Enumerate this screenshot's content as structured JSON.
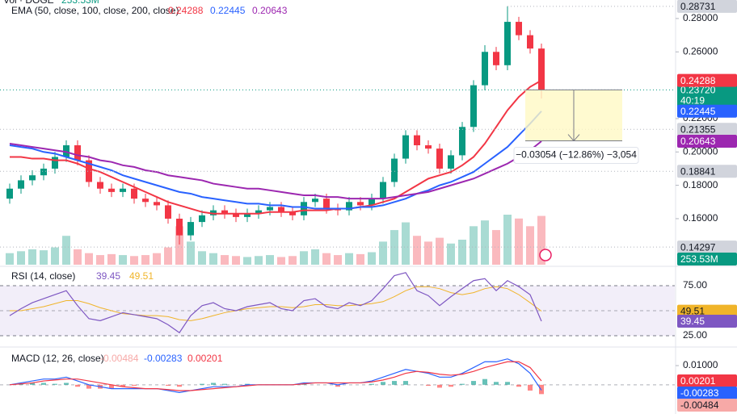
{
  "chart_data": {
    "type": "candlestick",
    "volume_legend": "Vol · DOGE",
    "ema_legend": "EMA (50, close, 100, close, 200, close)",
    "ylim": [
      0.1324,
      0.2911
    ],
    "yticks": [
      {
        "value": 0.28,
        "label": "0.28000"
      },
      {
        "value": 0.26,
        "label": "0.26000"
      },
      {
        "value": 0.22,
        "label": "0.22000"
      },
      {
        "value": 0.2,
        "label": "0.20000"
      },
      {
        "value": 0.18,
        "label": "0.18000"
      },
      {
        "value": 0.16,
        "label": "0.16000"
      }
    ],
    "up_color": "#089981",
    "down_color": "#f23645",
    "open": [
      0.172,
      0.178,
      0.183,
      0.186,
      0.19,
      0.197,
      0.204,
      0.195,
      0.182,
      0.178,
      0.176,
      0.178,
      0.172,
      0.17,
      0.168,
      0.16,
      0.15,
      0.158,
      0.162,
      0.165,
      0.163,
      0.161,
      0.163,
      0.165,
      0.167,
      0.164,
      0.162,
      0.17,
      0.172,
      0.166,
      0.165,
      0.17,
      0.168,
      0.172,
      0.182,
      0.196,
      0.21,
      0.204,
      0.202,
      0.19,
      0.198,
      0.215,
      0.24,
      0.26,
      0.252,
      0.278,
      0.27,
      0.262
    ],
    "high": [
      0.181,
      0.186,
      0.189,
      0.193,
      0.2,
      0.207,
      0.207,
      0.198,
      0.185,
      0.181,
      0.181,
      0.181,
      0.175,
      0.173,
      0.171,
      0.163,
      0.161,
      0.165,
      0.168,
      0.168,
      0.166,
      0.166,
      0.168,
      0.17,
      0.17,
      0.167,
      0.173,
      0.175,
      0.175,
      0.169,
      0.173,
      0.173,
      0.175,
      0.185,
      0.199,
      0.213,
      0.213,
      0.207,
      0.205,
      0.201,
      0.218,
      0.243,
      0.264,
      0.263,
      0.28731,
      0.281,
      0.273,
      0.265
    ],
    "low": [
      0.169,
      0.175,
      0.18,
      0.183,
      0.187,
      0.194,
      0.192,
      0.179,
      0.175,
      0.173,
      0.173,
      0.169,
      0.167,
      0.165,
      0.157,
      0.1445,
      0.147,
      0.155,
      0.159,
      0.16,
      0.158,
      0.158,
      0.16,
      0.162,
      0.161,
      0.159,
      0.159,
      0.167,
      0.163,
      0.162,
      0.162,
      0.165,
      0.165,
      0.169,
      0.179,
      0.193,
      0.201,
      0.199,
      0.187,
      0.187,
      0.195,
      0.212,
      0.237,
      0.249,
      0.249,
      0.267,
      0.259,
      0.232
    ],
    "close": [
      0.178,
      0.183,
      0.186,
      0.19,
      0.197,
      0.204,
      0.195,
      0.182,
      0.178,
      0.176,
      0.178,
      0.172,
      0.17,
      0.168,
      0.16,
      0.15,
      0.158,
      0.162,
      0.165,
      0.163,
      0.161,
      0.163,
      0.165,
      0.167,
      0.164,
      0.162,
      0.17,
      0.172,
      0.166,
      0.165,
      0.17,
      0.168,
      0.172,
      0.182,
      0.196,
      0.21,
      0.204,
      0.202,
      0.19,
      0.198,
      0.215,
      0.24,
      0.26,
      0.252,
      0.278,
      0.27,
      0.262,
      0.2372
    ],
    "ema": [
      {
        "color": "#f23645",
        "values": [
          0.197,
          0.197,
          0.196,
          0.196,
          0.195,
          0.195,
          0.193,
          0.19,
          0.188,
          0.185,
          0.182,
          0.179,
          0.176,
          0.173,
          0.17,
          0.168,
          0.166,
          0.164,
          0.163,
          0.163,
          0.163,
          0.163,
          0.163,
          0.164,
          0.164,
          0.164,
          0.165,
          0.165,
          0.165,
          0.166,
          0.166,
          0.167,
          0.168,
          0.17,
          0.172,
          0.176,
          0.18,
          0.184,
          0.186,
          0.188,
          0.192,
          0.197,
          0.205,
          0.215,
          0.225,
          0.233,
          0.239,
          0.24288
        ]
      },
      {
        "color": "#2962ff",
        "values": [
          0.204,
          0.203,
          0.202,
          0.2,
          0.199,
          0.197,
          0.195,
          0.193,
          0.191,
          0.189,
          0.186,
          0.184,
          0.182,
          0.18,
          0.178,
          0.176,
          0.175,
          0.173,
          0.172,
          0.171,
          0.17,
          0.169,
          0.169,
          0.168,
          0.168,
          0.167,
          0.167,
          0.166,
          0.166,
          0.166,
          0.166,
          0.167,
          0.167,
          0.168,
          0.17,
          0.172,
          0.175,
          0.177,
          0.18,
          0.182,
          0.185,
          0.188,
          0.193,
          0.198,
          0.203,
          0.21,
          0.217,
          0.22445
        ]
      },
      {
        "color": "#9c27b0",
        "values": [
          0.205,
          0.204,
          0.203,
          0.202,
          0.201,
          0.2,
          0.198,
          0.197,
          0.195,
          0.194,
          0.192,
          0.191,
          0.189,
          0.188,
          0.186,
          0.185,
          0.184,
          0.183,
          0.181,
          0.18,
          0.179,
          0.178,
          0.178,
          0.177,
          0.176,
          0.175,
          0.174,
          0.174,
          0.173,
          0.173,
          0.172,
          0.172,
          0.172,
          0.172,
          0.173,
          0.174,
          0.175,
          0.176,
          0.178,
          0.18,
          0.182,
          0.184,
          0.187,
          0.19,
          0.193,
          0.197,
          0.201,
          0.20643
        ]
      }
    ],
    "levels": [
      0.21355,
      0.18841,
      0.14297
    ],
    "last_price": {
      "value": 0.2372,
      "label": "0.23720"
    },
    "timer": "40:19",
    "volume": {
      "values": [
        60000000.0,
        70000000.0,
        80000000.0,
        75000000.0,
        90000000.0,
        150000000.0,
        80000000.0,
        60000000.0,
        50000000.0,
        55000000.0,
        50000000.0,
        45000000.0,
        50000000.0,
        60000000.0,
        90000000.0,
        200000000.0,
        120000000.0,
        70000000.0,
        60000000.0,
        50000000.0,
        45000000.0,
        40000000.0,
        45000000.0,
        50000000.0,
        40000000.0,
        45000000.0,
        70000000.0,
        80000000.0,
        60000000.0,
        50000000.0,
        60000000.0,
        55000000.0,
        65000000.0,
        120000000.0,
        180000000.0,
        220000000.0,
        150000000.0,
        120000000.0,
        140000000.0,
        110000000.0,
        130000000.0,
        200000000.0,
        230000000.0,
        180000000.0,
        260000000.0,
        240000000.0,
        200000000.0,
        253530000.0
      ],
      "last_label": "253.53M"
    },
    "measure": {
      "change": -0.03054,
      "label": "−0.03054 (−12.86%) −3,054"
    },
    "rsi": {
      "legend": "RSI (14, close)",
      "ylim": [
        15.3,
        92.7
      ],
      "yticks": [
        {
          "value": 75,
          "label": "75.00"
        },
        {
          "value": 25,
          "label": "25.00"
        }
      ],
      "color": "#7e57c2",
      "ma_color": "#f0b429",
      "values": [
        45,
        52,
        58,
        62,
        66,
        70,
        55,
        42,
        40,
        44,
        48,
        46,
        44,
        42,
        36,
        28,
        45,
        55,
        58,
        52,
        50,
        54,
        56,
        58,
        52,
        50,
        60,
        62,
        54,
        52,
        58,
        55,
        60,
        72,
        85,
        88,
        70,
        65,
        55,
        64,
        72,
        80,
        82,
        70,
        80,
        74,
        66,
        39.45
      ],
      "ma_values": [
        50,
        50,
        52,
        54,
        57,
        60,
        60,
        57,
        53,
        50,
        47,
        46,
        45,
        45,
        44,
        41,
        40,
        42,
        45,
        48,
        50,
        52,
        53,
        54,
        54,
        53,
        54,
        56,
        56,
        55,
        55,
        56,
        57,
        59,
        64,
        70,
        74,
        74,
        72,
        68,
        66,
        68,
        72,
        74,
        72,
        66,
        58,
        49.51
      ]
    },
    "macd": {
      "legend": "MACD (12, 26, close)",
      "ylim": [
        -0.0152,
        0.018
      ],
      "yticks": [
        {
          "value": 0.01,
          "label": "0.01000"
        }
      ],
      "macd_color": "#2962ff",
      "signal_color": "#f23645",
      "hist_color": "#f7a9a7",
      "histogram": [
        0,
        0.0005,
        0.001,
        0.001,
        0.0005,
        0.001,
        -0.001,
        -0.002,
        -0.002,
        -0.002,
        -0.001,
        -0.0005,
        0,
        0,
        -0.0005,
        -0.001,
        0,
        0.0005,
        0.001,
        0.0005,
        0,
        0.0005,
        0,
        0,
        0,
        0,
        0.0005,
        0,
        0,
        -0.001,
        0,
        0,
        0.0005,
        0.0015,
        0.002,
        0.002,
        0,
        -0.0005,
        -0.0015,
        -0.001,
        0.0005,
        0.002,
        0.003,
        0.0015,
        0.0015,
        -0.001,
        -0.003,
        -0.00484
      ],
      "macd": [
        0,
        0.001,
        0.002,
        0.003,
        0.003,
        0.004,
        0.002,
        0,
        -0.001,
        -0.002,
        -0.002,
        -0.002,
        -0.002,
        -0.002,
        -0.003,
        -0.004,
        -0.003,
        -0.002,
        -0.001,
        -0.001,
        -0.001,
        0,
        0,
        0,
        0,
        0,
        0.001,
        0.001,
        0.001,
        0,
        0.001,
        0.001,
        0.002,
        0.004,
        0.006,
        0.008,
        0.007,
        0.006,
        0.004,
        0.004,
        0.006,
        0.009,
        0.012,
        0.012,
        0.0135,
        0.011,
        0.006,
        -0.00283
      ],
      "signal": [
        0,
        0.0005,
        0.001,
        0.002,
        0.0025,
        0.003,
        0.003,
        0.002,
        0.001,
        0,
        -0.001,
        -0.0015,
        -0.002,
        -0.002,
        -0.0025,
        -0.003,
        -0.003,
        -0.0025,
        -0.002,
        -0.0015,
        -0.001,
        -0.0005,
        0,
        0,
        0,
        0,
        0.0005,
        0.001,
        0.001,
        0.001,
        0.001,
        0.001,
        0.0015,
        0.0025,
        0.004,
        0.006,
        0.007,
        0.0065,
        0.0055,
        0.005,
        0.0055,
        0.007,
        0.009,
        0.0105,
        0.012,
        0.012,
        0.009,
        0.00201
      ]
    }
  }
}
